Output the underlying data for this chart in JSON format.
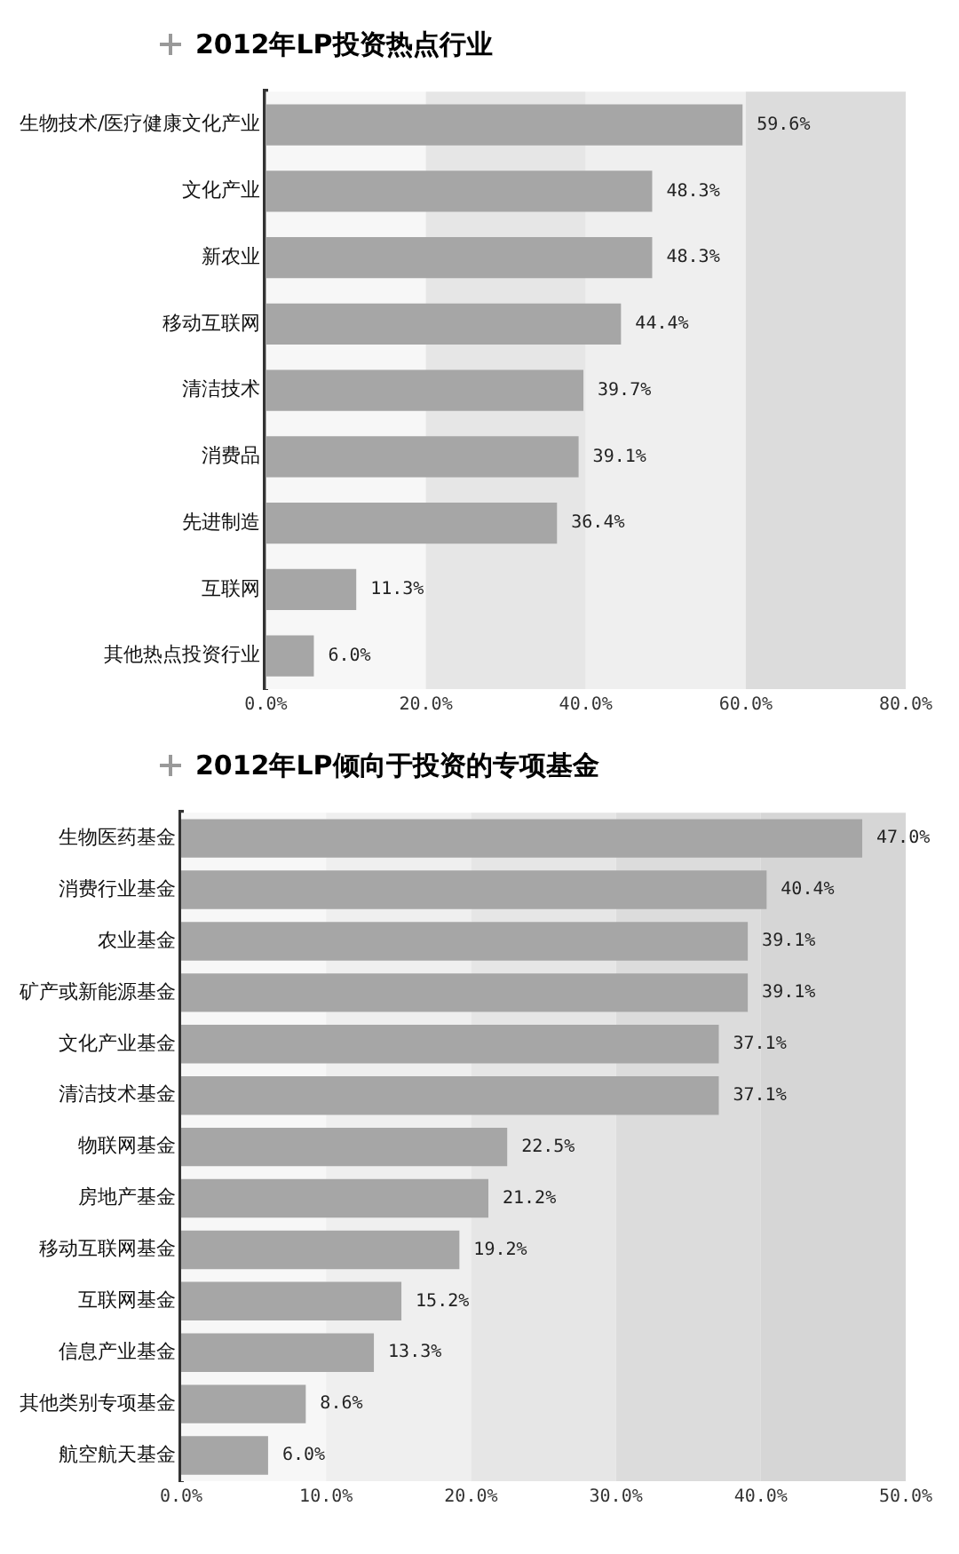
{
  "chart_data": [
    {
      "type": "bar",
      "orientation": "horizontal",
      "title": "2012年LP投资热点行业",
      "categories": [
        "生物技术/医疗健康文化产业",
        "文化产业",
        "新农业",
        "移动互联网",
        "清洁技术",
        "消费品",
        "先进制造",
        "互联网",
        "其他热点投资行业"
      ],
      "values": [
        59.6,
        48.3,
        48.3,
        44.4,
        39.7,
        39.1,
        36.4,
        11.3,
        6.0
      ],
      "value_labels": [
        "59.6%",
        "48.3%",
        "48.3%",
        "44.4%",
        "39.7%",
        "39.1%",
        "36.4%",
        "11.3%",
        "6.0%"
      ],
      "color": "#a6a6a6",
      "xlim": [
        0,
        80
      ],
      "xticks": [
        {
          "value": 0,
          "label": "0.0%"
        },
        {
          "value": 20,
          "label": "20.0%"
        },
        {
          "value": 40,
          "label": "40.0%"
        },
        {
          "value": 60,
          "label": "60.0%"
        },
        {
          "value": 80,
          "label": "80.0%"
        }
      ],
      "grid": false,
      "legend": false,
      "bands": [
        {
          "axis": "x",
          "from": 0,
          "to": 20,
          "color": "#f7f7f7"
        },
        {
          "axis": "x",
          "from": 20,
          "to": 40,
          "color": "#e6e6e6"
        },
        {
          "axis": "x",
          "from": 40,
          "to": 60,
          "color": "#efefef"
        },
        {
          "axis": "x",
          "from": 60,
          "to": 80,
          "color": "#dcdcdc"
        }
      ]
    },
    {
      "type": "bar",
      "orientation": "horizontal",
      "title": "2012年LP倾向于投资的专项基金",
      "categories": [
        "生物医药基金",
        "消费行业基金",
        "农业基金",
        "矿产或新能源基金",
        "文化产业基金",
        "清洁技术基金",
        "物联网基金",
        "房地产基金",
        "移动互联网基金",
        "互联网基金",
        "信息产业基金",
        "其他类别专项基金",
        "航空航天基金"
      ],
      "values": [
        47.0,
        40.4,
        39.1,
        39.1,
        37.1,
        37.1,
        22.5,
        21.2,
        19.2,
        15.2,
        13.3,
        8.6,
        6.0
      ],
      "value_labels": [
        "47.0%",
        "40.4%",
        "39.1%",
        "39.1%",
        "37.1%",
        "37.1%",
        "22.5%",
        "21.2%",
        "19.2%",
        "15.2%",
        "13.3%",
        "8.6%",
        "6.0%"
      ],
      "color": "#a6a6a6",
      "xlim": [
        0,
        50
      ],
      "xticks": [
        {
          "value": 0,
          "label": "0.0%"
        },
        {
          "value": 10,
          "label": "10.0%"
        },
        {
          "value": 20,
          "label": "20.0%"
        },
        {
          "value": 30,
          "label": "30.0%"
        },
        {
          "value": 40,
          "label": "40.0%"
        },
        {
          "value": 50,
          "label": "50.0%"
        }
      ],
      "grid": false,
      "legend": false,
      "bands": [
        {
          "axis": "x",
          "from": 0,
          "to": 10,
          "color": "#f7f7f7"
        },
        {
          "axis": "x",
          "from": 10,
          "to": 20,
          "color": "#efefef"
        },
        {
          "axis": "x",
          "from": 20,
          "to": 30,
          "color": "#e6e6e6"
        },
        {
          "axis": "x",
          "from": 30,
          "to": 40,
          "color": "#dcdcdc"
        },
        {
          "axis": "x",
          "from": 40,
          "to": 50,
          "color": "#d6d6d6"
        }
      ]
    }
  ]
}
